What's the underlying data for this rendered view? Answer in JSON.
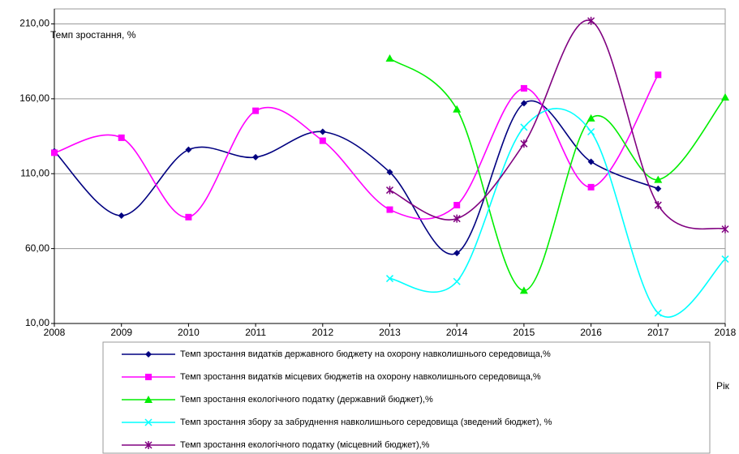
{
  "chart_data": {
    "type": "line",
    "y_label": "Темп зростання, %",
    "x_label": "Рік",
    "x": [
      2008,
      2009,
      2010,
      2011,
      2012,
      2013,
      2014,
      2015,
      2016,
      2017,
      2018
    ],
    "xlim": [
      2008,
      2018
    ],
    "xticks": [
      2008,
      2009,
      2010,
      2011,
      2012,
      2013,
      2014,
      2015,
      2016,
      2017,
      2018
    ],
    "ylim": [
      10,
      220
    ],
    "yticks": [
      {
        "value": 10,
        "label": "10,00"
      },
      {
        "value": 60,
        "label": "60,00"
      },
      {
        "value": 110,
        "label": "110,00"
      },
      {
        "value": 160,
        "label": "160,00"
      },
      {
        "value": 210,
        "label": "210,00"
      }
    ],
    "grid": true,
    "smooth": true,
    "legend": "bottom",
    "series": [
      {
        "name": "Темп зростання видатків державного бюджету на охорону навколишнього середовища,%",
        "color": "#000080",
        "marker": "diamond",
        "values": [
          125,
          82,
          126,
          121,
          138,
          111,
          57,
          157,
          118,
          100,
          null
        ]
      },
      {
        "name": "Темп зростання видатків місцевих бюджетів на охорону навколишнього середовища,%",
        "color": "#ff00ff",
        "marker": "square",
        "values": [
          124,
          134,
          81,
          152,
          132,
          86,
          89,
          167,
          101,
          176,
          null
        ]
      },
      {
        "name": "Темп зростання екологічного податку (державний бюджет),%",
        "color": "#00ee00",
        "marker": "triangle",
        "values": [
          null,
          null,
          null,
          null,
          null,
          187,
          153,
          32,
          147,
          106,
          161
        ]
      },
      {
        "name": "Темп зростання збору за забруднення навколишнього середовища (зведений бюджет), %",
        "color": "#00ffff",
        "marker": "x",
        "values": [
          null,
          null,
          null,
          null,
          null,
          40,
          38,
          141,
          138,
          17,
          53
        ]
      },
      {
        "name": "Темп зростання екологічного податку (місцевний бюджет),%",
        "color": "#800080",
        "marker": "asterisk",
        "values": [
          null,
          null,
          null,
          null,
          null,
          99,
          80,
          130,
          212,
          89,
          73
        ]
      }
    ]
  }
}
